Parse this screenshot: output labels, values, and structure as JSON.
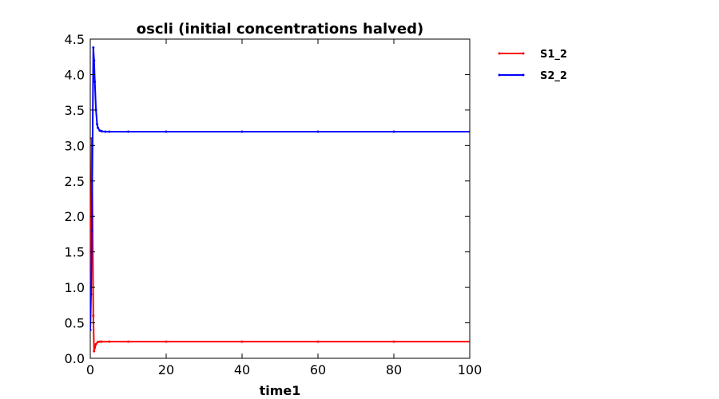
{
  "chart_data": {
    "type": "line",
    "title": "oscli  (initial concentrations halved)",
    "xlabel": "time1",
    "ylabel": "",
    "xlim": [
      0,
      100
    ],
    "ylim": [
      0,
      4.5
    ],
    "xticks": [
      0,
      20,
      40,
      60,
      80,
      100
    ],
    "yticks": [
      0.0,
      0.5,
      1.0,
      1.5,
      2.0,
      2.5,
      3.0,
      3.5,
      4.0,
      4.5
    ],
    "xtick_labels": [
      "0",
      "20",
      "40",
      "60",
      "80",
      "100"
    ],
    "ytick_labels": [
      "0.0",
      "0.5",
      "1.0",
      "1.5",
      "2.0",
      "2.5",
      "3.0",
      "3.5",
      "4.0",
      "4.5"
    ],
    "grid": false,
    "legend_placement": "outside-top-right",
    "series": [
      {
        "name": "S1_2",
        "color": "#ff0000",
        "x": [
          0,
          0.2,
          0.4,
          0.6,
          0.8,
          1.0,
          1.2,
          1.5,
          2.0,
          2.5,
          3.0,
          5,
          10,
          20,
          40,
          60,
          80,
          100
        ],
        "y": [
          0.4,
          1.8,
          3.1,
          2.0,
          0.6,
          0.1,
          0.15,
          0.2,
          0.23,
          0.235,
          0.235,
          0.235,
          0.235,
          0.235,
          0.235,
          0.235,
          0.235,
          0.235
        ]
      },
      {
        "name": "S2_2",
        "color": "#0000ff",
        "x": [
          0,
          0.2,
          0.4,
          0.6,
          0.8,
          1.0,
          1.2,
          1.5,
          1.8,
          2.0,
          2.5,
          3.0,
          4,
          5,
          10,
          20,
          40,
          60,
          80,
          100
        ],
        "y": [
          0.4,
          0.9,
          1.8,
          3.0,
          4.38,
          4.2,
          3.9,
          3.5,
          3.3,
          3.25,
          3.21,
          3.2,
          3.195,
          3.195,
          3.195,
          3.195,
          3.195,
          3.195,
          3.195,
          3.195
        ]
      }
    ]
  }
}
